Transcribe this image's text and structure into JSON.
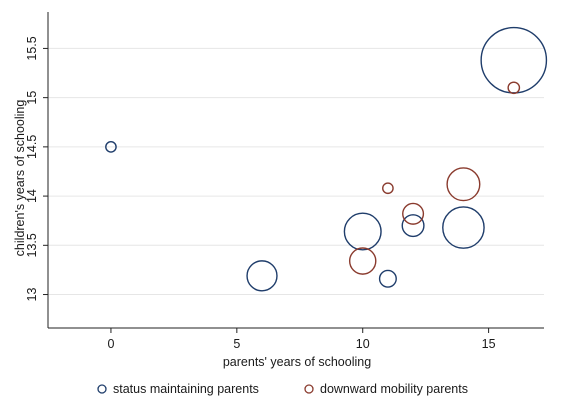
{
  "chart_data": {
    "type": "scatter",
    "title": "",
    "xlabel": "parents' years of schooling",
    "ylabel": "children's years of schooling",
    "xlim": [
      -2.5,
      17.2
    ],
    "ylim": [
      12.66,
      15.87
    ],
    "xticks": [
      0,
      5,
      10,
      15
    ],
    "yticks": [
      13,
      13.5,
      14,
      14.5,
      15,
      15.5
    ],
    "ytick_labels": [
      "13",
      "13.5",
      "14",
      "14.5",
      "15",
      "15.5"
    ],
    "grid": "horizontal",
    "marker": "hollow circle sized by weight",
    "legend_position": "bottom",
    "series": [
      {
        "name": "status maintaining parents",
        "color": "#1f3d6b",
        "points": [
          {
            "x": 0,
            "y": 14.5,
            "size": 0.5
          },
          {
            "x": 6,
            "y": 13.19,
            "size": 4.2
          },
          {
            "x": 10,
            "y": 13.64,
            "size": 6.3
          },
          {
            "x": 11,
            "y": 13.16,
            "size": 1.3
          },
          {
            "x": 12,
            "y": 13.7,
            "size": 2.2
          },
          {
            "x": 14,
            "y": 13.68,
            "size": 8.0
          },
          {
            "x": 16,
            "y": 15.38,
            "size": 20.0
          }
        ]
      },
      {
        "name": "downward mobility parents",
        "color": "#8a3b2e",
        "points": [
          {
            "x": 10,
            "y": 13.34,
            "size": 3.2
          },
          {
            "x": 11,
            "y": 14.08,
            "size": 0.5
          },
          {
            "x": 12,
            "y": 13.82,
            "size": 2.0
          },
          {
            "x": 14,
            "y": 14.12,
            "size": 5.0
          },
          {
            "x": 16,
            "y": 15.1,
            "size": 0.6
          }
        ]
      }
    ]
  }
}
